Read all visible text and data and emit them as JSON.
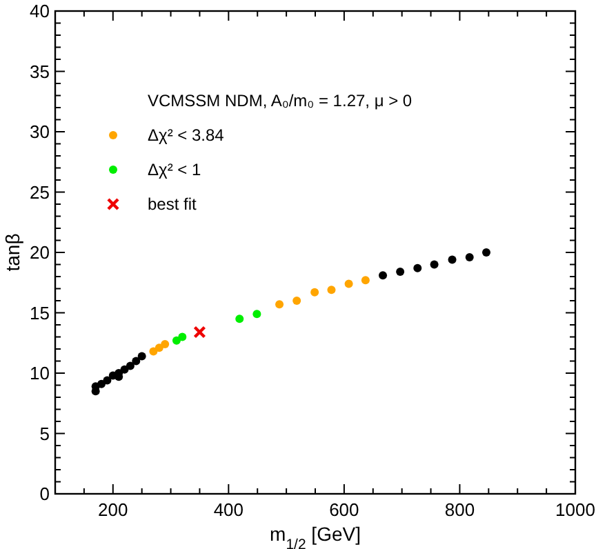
{
  "chart_data": {
    "type": "scatter",
    "xlabel": "m$_{1/2}$ [GeV]",
    "ylabel": "tanβ",
    "legend_title": "VCMSSM NDM, A₀/m₀ = 1.27, μ > 0",
    "legend": "top left",
    "xlim": [
      100,
      1000
    ],
    "ylim": [
      0,
      40
    ],
    "xticks": [
      {
        "value": 150,
        "label": null
      },
      200,
      {
        "value": 250,
        "label": null
      },
      {
        "value": 300,
        "label": null
      },
      {
        "value": 350,
        "label": null
      },
      400,
      {
        "value": 450,
        "label": null
      },
      {
        "value": 500,
        "label": null
      },
      {
        "value": 550,
        "label": null
      },
      600,
      {
        "value": 650,
        "label": null
      },
      {
        "value": 700,
        "label": null
      },
      {
        "value": 750,
        "label": null
      },
      800,
      {
        "value": 850,
        "label": null
      },
      {
        "value": 900,
        "label": null
      },
      {
        "value": 950,
        "label": null
      },
      1000
    ],
    "yticks": [
      0,
      {
        "value": 1,
        "label": null
      },
      {
        "value": 2,
        "label": null
      },
      {
        "value": 3,
        "label": null
      },
      {
        "value": 4,
        "label": null
      },
      5,
      {
        "value": 6,
        "label": null
      },
      {
        "value": 7,
        "label": null
      },
      {
        "value": 8,
        "label": null
      },
      {
        "value": 9,
        "label": null
      },
      10,
      {
        "value": 11,
        "label": null
      },
      {
        "value": 12,
        "label": null
      },
      {
        "value": 13,
        "label": null
      },
      {
        "value": 14,
        "label": null
      },
      15,
      {
        "value": 16,
        "label": null
      },
      {
        "value": 17,
        "label": null
      },
      {
        "value": 18,
        "label": null
      },
      {
        "value": 19,
        "label": null
      },
      20,
      {
        "value": 21,
        "label": null
      },
      {
        "value": 22,
        "label": null
      },
      {
        "value": 23,
        "label": null
      },
      {
        "value": 24,
        "label": null
      },
      25,
      {
        "value": 26,
        "label": null
      },
      {
        "value": 27,
        "label": null
      },
      {
        "value": 28,
        "label": null
      },
      {
        "value": 29,
        "label": null
      },
      30,
      {
        "value": 31,
        "label": null
      },
      {
        "value": 32,
        "label": null
      },
      {
        "value": 33,
        "label": null
      },
      {
        "value": 34,
        "label": null
      },
      35,
      {
        "value": 36,
        "label": null
      },
      {
        "value": 37,
        "label": null
      },
      {
        "value": 38,
        "label": null
      },
      {
        "value": 39,
        "label": null
      },
      40
    ],
    "series": [
      {
        "color": "#000000",
        "marker": "circle",
        "x": [
          170,
          170,
          180,
          190,
          200,
          210,
          210,
          220,
          230,
          240,
          250,
          667,
          697,
          727,
          756,
          787,
          817,
          846
        ],
        "values": [
          8.5,
          8.9,
          9.1,
          9.4,
          9.8,
          9.7,
          10.0,
          10.3,
          10.6,
          11.0,
          11.4,
          18.1,
          18.4,
          18.7,
          19.0,
          19.4,
          19.6,
          20.0
        ]
      },
      {
        "name": "Δχ² < 3.84",
        "color": "#ffa500",
        "marker": "circle",
        "x": [
          270,
          280,
          290,
          488,
          518,
          549,
          578,
          608,
          637
        ],
        "values": [
          11.8,
          12.1,
          12.4,
          15.7,
          16.0,
          16.7,
          16.9,
          17.4,
          17.7
        ]
      },
      {
        "name": "Δχ² < 1",
        "color": "#00ee00",
        "marker": "circle",
        "x": [
          310,
          320,
          419,
          449
        ],
        "values": [
          12.7,
          13.0,
          14.5,
          14.9
        ]
      },
      {
        "name": "best fit",
        "color": "#ee0000",
        "marker": "cross",
        "x": [
          350
        ],
        "values": [
          13.4
        ]
      }
    ]
  }
}
